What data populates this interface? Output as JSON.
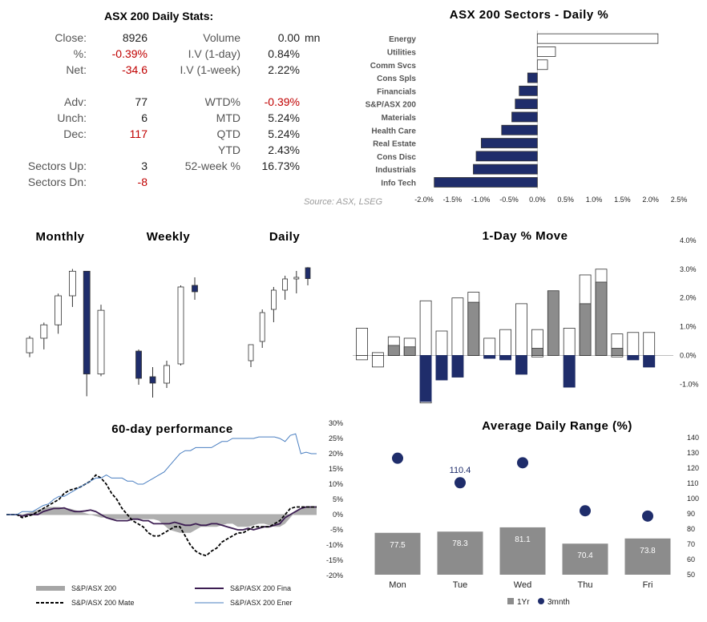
{
  "stats": {
    "title": "ASX 200 Daily Stats:",
    "left": [
      {
        "label": "Close:",
        "value": "8926",
        "neg": false
      },
      {
        "label": "%:",
        "value": "-0.39%",
        "neg": true
      },
      {
        "label": "Net:",
        "value": "-34.6",
        "neg": true
      },
      {
        "label": "Adv:",
        "value": "77",
        "neg": false
      },
      {
        "label": "Unch:",
        "value": "6",
        "neg": false
      },
      {
        "label": "Dec:",
        "value": "117",
        "neg": true
      },
      {
        "label": "Sectors Up:",
        "value": "3",
        "neg": false
      },
      {
        "label": "Sectors Dn:",
        "value": "-8",
        "neg": true
      }
    ],
    "right": [
      {
        "label": "Volume",
        "value": "0.00",
        "unit": "mn",
        "neg": false
      },
      {
        "label": "I.V (1-day)",
        "value": "0.84%",
        "unit": "",
        "neg": false
      },
      {
        "label": "I.V (1-week)",
        "value": "2.22%",
        "unit": "",
        "neg": false
      },
      {
        "label": "WTD%",
        "value": "-0.39%",
        "unit": "",
        "neg": true
      },
      {
        "label": "MTD",
        "value": "5.24%",
        "unit": "",
        "neg": false
      },
      {
        "label": "QTD",
        "value": "5.24%",
        "unit": "",
        "neg": false
      },
      {
        "label": "YTD",
        "value": "2.43%",
        "unit": "",
        "neg": false
      },
      {
        "label": "52-week %",
        "value": "16.73%",
        "unit": "",
        "neg": false
      }
    ]
  },
  "chart_data": [
    {
      "type": "bar",
      "title": "ASX 200 Sectors - Daily %",
      "orientation": "horizontal",
      "source": "Source: ASX, LSEG",
      "categories": [
        "Energy",
        "Utilities",
        "Comm Svcs",
        "Cons Spls",
        "Financials",
        "S&P/ASX 200",
        "Materials",
        "Health Care",
        "Real Estate",
        "Cons Disc",
        "Industrials",
        "Info Tech"
      ],
      "values": [
        2.13,
        0.32,
        0.18,
        -0.17,
        -0.32,
        -0.39,
        -0.45,
        -0.63,
        -0.99,
        -1.08,
        -1.13,
        -1.82
      ],
      "xlim": [
        -2.0,
        2.5
      ],
      "ticks": [
        -2.0,
        -1.5,
        -1.0,
        -0.5,
        0.0,
        0.5,
        1.0,
        1.5,
        2.0,
        2.5
      ],
      "tick_labels": [
        "-2.0%",
        "-1.5%",
        "-1.0%",
        "-0.5%",
        "0.0%",
        "0.5%",
        "1.0%",
        "1.5%",
        "2.0%",
        "2.5%"
      ],
      "colors": {
        "positive": "#ffffff",
        "negative": "#1f2d6b"
      }
    },
    {
      "type": "candlestick",
      "panels": [
        {
          "title": "Monthly",
          "candles": [
            {
              "o": 7735,
              "h": 7810,
              "l": 7715,
              "c": 7800
            },
            {
              "o": 7800,
              "h": 7870,
              "l": 7750,
              "c": 7860
            },
            {
              "o": 7860,
              "h": 8000,
              "l": 7820,
              "c": 7990
            },
            {
              "o": 7990,
              "h": 8110,
              "l": 7940,
              "c": 8100
            },
            {
              "o": 8100,
              "h": 8100,
              "l": 7540,
              "c": 7640
            },
            {
              "o": 7640,
              "h": 7950,
              "l": 7630,
              "c": 7925
            }
          ]
        },
        {
          "title": "Weekly",
          "candles": [
            {
              "o": 8010,
              "h": 8020,
              "l": 7800,
              "c": 7840
            },
            {
              "o": 7850,
              "h": 7910,
              "l": 7720,
              "c": 7810
            },
            {
              "o": 7810,
              "h": 7950,
              "l": 7780,
              "c": 7920
            },
            {
              "o": 7930,
              "h": 8420,
              "l": 7920,
              "c": 8410
            },
            {
              "o": 8420,
              "h": 8470,
              "l": 8330,
              "c": 8380
            }
          ]
        },
        {
          "title": "Daily",
          "candles": [
            {
              "o": 8670,
              "h": 8720,
              "l": 8650,
              "c": 8720
            },
            {
              "o": 8730,
              "h": 8830,
              "l": 8710,
              "c": 8820
            },
            {
              "o": 8830,
              "h": 8900,
              "l": 8790,
              "c": 8890
            },
            {
              "o": 8890,
              "h": 8935,
              "l": 8860,
              "c": 8925
            },
            {
              "o": 8925,
              "h": 8950,
              "l": 8880,
              "c": 8930
            },
            {
              "o": 8960,
              "h": 8962,
              "l": 8905,
              "c": 8926
            }
          ]
        }
      ]
    },
    {
      "type": "bar",
      "title": "1-Day % Move",
      "ylim": [
        -1.5,
        4.0
      ],
      "ticks": [
        -1.0,
        0.0,
        1.0,
        2.0,
        3.0,
        4.0
      ],
      "tick_labels": [
        "-1.0%",
        "0.0%",
        "1.0%",
        "2.0%",
        "3.0%",
        "4.0%"
      ],
      "series": [
        {
          "kind": "up-range",
          "values": [
            0.95,
            0.1,
            0.65,
            0.6,
            1.9,
            0.85,
            2.0,
            2.2,
            0.6,
            0.9,
            1.8,
            0.9,
            0.0,
            0.95,
            2.8,
            3.0,
            0.75,
            0.8,
            0.8
          ]
        },
        {
          "kind": "down-range",
          "values": [
            -0.15,
            -0.4,
            0.0,
            0.0,
            -1.65,
            -0.85,
            -0.75,
            0.0,
            -0.1,
            -0.15,
            -0.65,
            -0.05,
            0.0,
            -1.1,
            0.0,
            0.0,
            -0.05,
            -0.15,
            -0.4
          ]
        },
        {
          "kind": "net-move-positive",
          "values": [
            0,
            0,
            0.35,
            0.3,
            0,
            0,
            0,
            1.85,
            0,
            0,
            0,
            0.25,
            2.25,
            0,
            1.8,
            2.55,
            0.25,
            0,
            0
          ]
        },
        {
          "kind": "net-move-negative",
          "values": [
            0,
            0,
            0,
            0,
            -1.6,
            -0.85,
            -0.75,
            0,
            -0.1,
            -0.15,
            -0.65,
            0,
            0,
            -1.1,
            0,
            0,
            0,
            -0.15,
            -0.4
          ]
        }
      ],
      "colors": {
        "range": "#ffffff",
        "pos": "#8c8c8c",
        "neg": "#1f2d6b"
      }
    },
    {
      "type": "line",
      "title": "60-day performance",
      "ylim": [
        -20,
        30
      ],
      "ticks": [
        -20,
        -15,
        -10,
        -5,
        0,
        5,
        10,
        15,
        20,
        25,
        30
      ],
      "tick_labels": [
        "-20%",
        "-15%",
        "-10%",
        "-5%",
        "0%",
        "5%",
        "10%",
        "15%",
        "20%",
        "25%",
        "30%"
      ],
      "series": [
        {
          "name": "S&P/ASX 200",
          "style": "area",
          "color": "#a6a6a6",
          "values": [
            0,
            0,
            -0.3,
            0,
            0.5,
            1,
            1.5,
            2,
            2.5,
            2.5,
            2.5,
            2.2,
            2,
            1.5,
            1,
            0.5,
            0,
            -0.5,
            -1,
            -1,
            -1.5,
            -1.5,
            -1.5,
            -1.5,
            -1.5,
            -1.5,
            -1.5,
            -1.5,
            -1.5,
            -2,
            -3.5,
            -5,
            -5.5,
            -6,
            -6,
            -6,
            -5,
            -4,
            -4,
            -4,
            -4,
            -3.5,
            -3,
            -3,
            -4,
            -4,
            -4,
            -3.5,
            -3,
            -3,
            -3.5,
            -4,
            -4,
            -3,
            -1,
            1,
            2,
            2.5,
            2.5,
            2.5
          ]
        },
        {
          "name": "S&P/ASX 200 Fina",
          "style": "solid",
          "color": "#3c1d52",
          "values": [
            0,
            0,
            0,
            -0.5,
            0,
            0,
            0,
            1,
            1.5,
            2,
            2,
            2.2,
            1.5,
            1,
            1,
            1.2,
            1.5,
            1,
            0,
            -1,
            -1.5,
            -2,
            -2,
            -2,
            -1.5,
            -1.5,
            -2,
            -2,
            -3,
            -3,
            -3,
            -3,
            -2.5,
            -3,
            -3.5,
            -3.5,
            -3,
            -3.5,
            -3.5,
            -3,
            -3,
            -3.5,
            -4,
            -4.5,
            -5,
            -5,
            -4.5,
            -5,
            -4.5,
            -4,
            -4,
            -3.5,
            -3,
            -1,
            0,
            1,
            2,
            2.5,
            2.5,
            2.5
          ]
        },
        {
          "name": "S&P/ASX 200 Mate",
          "style": "dashed",
          "color": "#000000",
          "values": [
            0,
            0,
            0,
            -1,
            -0.5,
            0,
            1,
            2,
            3,
            4,
            5,
            7,
            8,
            8.5,
            9,
            10,
            11,
            13,
            12,
            10,
            7,
            5,
            2,
            0,
            -2,
            -3,
            -4,
            -6,
            -7,
            -7,
            -6,
            -5,
            -4,
            -4,
            -7,
            -10,
            -12,
            -13,
            -13.5,
            -12,
            -11,
            -9,
            -8,
            -7,
            -6,
            -6,
            -5,
            -4,
            -4,
            -4,
            -4,
            -3,
            -2,
            0,
            2,
            2.5,
            2.5,
            2.5,
            2.5,
            2.5
          ]
        },
        {
          "name": "S&P/ASX 200 Ener",
          "style": "thin",
          "color": "#4a7fc1",
          "values": [
            0,
            0,
            0,
            1,
            1,
            1,
            2,
            3,
            3.5,
            5,
            6,
            6,
            7,
            8,
            9,
            10,
            11,
            12,
            12,
            13,
            12,
            12,
            12,
            11,
            11,
            10,
            10,
            11,
            12,
            13,
            14,
            16,
            18,
            20,
            21,
            21,
            22,
            22,
            22,
            22,
            23,
            24,
            24,
            25,
            25,
            25,
            25,
            25,
            25.5,
            25.5,
            25.5,
            25.5,
            25,
            24,
            26,
            26.5,
            20,
            20.5,
            20,
            20
          ]
        }
      ]
    },
    {
      "type": "bar+scatter",
      "title": "Average Daily Range (%)",
      "categories": [
        "Mon",
        "Tue",
        "Wed",
        "Thu",
        "Fri"
      ],
      "ylim": [
        50,
        140
      ],
      "ticks": [
        50,
        60,
        70,
        80,
        90,
        100,
        110,
        120,
        130,
        140
      ],
      "series": [
        {
          "name": "1Yr",
          "type": "bar",
          "color": "#8c8c8c",
          "values": [
            77.5,
            78.3,
            81.1,
            70.4,
            73.8
          ],
          "labels": [
            "77.5",
            "78.3",
            "81.1",
            "70.4",
            "73.8"
          ]
        },
        {
          "name": "3mnth",
          "type": "scatter",
          "color": "#1f2d6b",
          "values": [
            126.5,
            110.4,
            123.5,
            92.0,
            88.5
          ],
          "labels": [
            "",
            "110.4",
            "",
            "",
            ""
          ]
        }
      ]
    }
  ]
}
